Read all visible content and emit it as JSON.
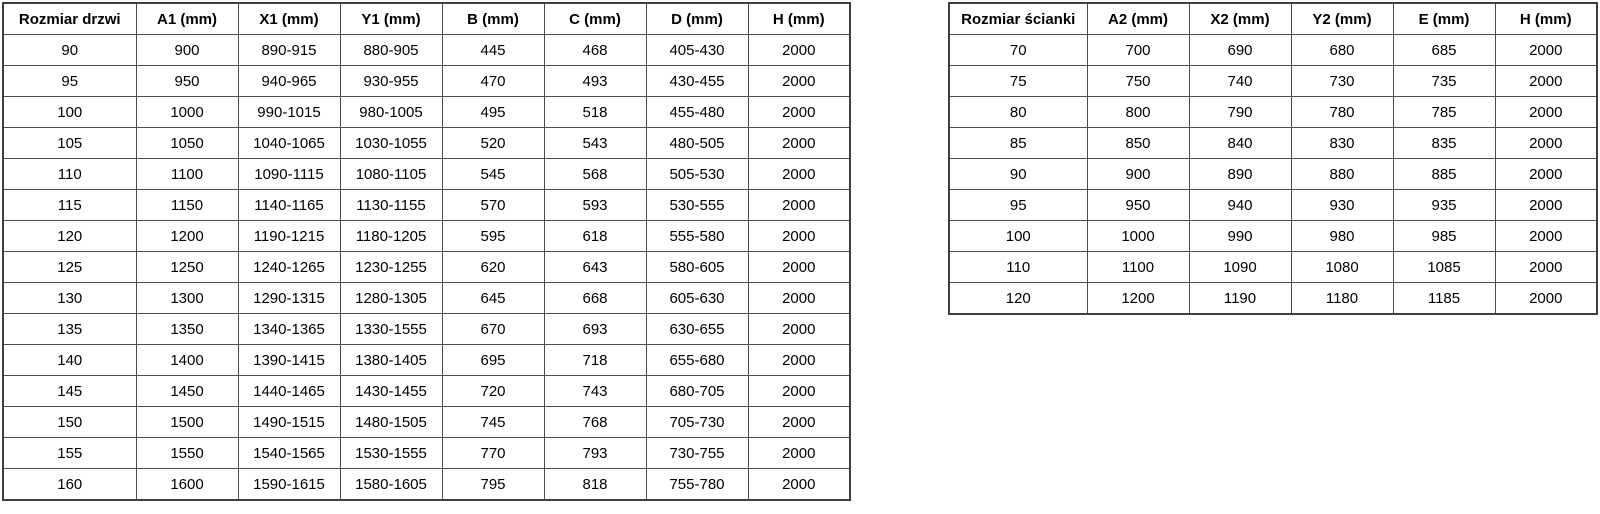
{
  "colors": {
    "background": "#ffffff",
    "border_inner": "#4d4d4d",
    "border_outer": "#3f3f3f",
    "text": "#000000"
  },
  "tables": [
    {
      "id": "door-size-table",
      "headers": [
        "Rozmiar drzwi",
        "A1 (mm)",
        "X1 (mm)",
        "Y1 (mm)",
        "B (mm)",
        "C (mm)",
        "D (mm)",
        "H (mm)"
      ],
      "rows": [
        [
          "90",
          "900",
          "890-915",
          "880-905",
          "445",
          "468",
          "405-430",
          "2000"
        ],
        [
          "95",
          "950",
          "940-965",
          "930-955",
          "470",
          "493",
          "430-455",
          "2000"
        ],
        [
          "100",
          "1000",
          "990-1015",
          "980-1005",
          "495",
          "518",
          "455-480",
          "2000"
        ],
        [
          "105",
          "1050",
          "1040-1065",
          "1030-1055",
          "520",
          "543",
          "480-505",
          "2000"
        ],
        [
          "110",
          "1100",
          "1090-1115",
          "1080-1105",
          "545",
          "568",
          "505-530",
          "2000"
        ],
        [
          "115",
          "1150",
          "1140-1165",
          "1130-1155",
          "570",
          "593",
          "530-555",
          "2000"
        ],
        [
          "120",
          "1200",
          "1190-1215",
          "1180-1205",
          "595",
          "618",
          "555-580",
          "2000"
        ],
        [
          "125",
          "1250",
          "1240-1265",
          "1230-1255",
          "620",
          "643",
          "580-605",
          "2000"
        ],
        [
          "130",
          "1300",
          "1290-1315",
          "1280-1305",
          "645",
          "668",
          "605-630",
          "2000"
        ],
        [
          "135",
          "1350",
          "1340-1365",
          "1330-1555",
          "670",
          "693",
          "630-655",
          "2000"
        ],
        [
          "140",
          "1400",
          "1390-1415",
          "1380-1405",
          "695",
          "718",
          "655-680",
          "2000"
        ],
        [
          "145",
          "1450",
          "1440-1465",
          "1430-1455",
          "720",
          "743",
          "680-705",
          "2000"
        ],
        [
          "150",
          "1500",
          "1490-1515",
          "1480-1505",
          "745",
          "768",
          "705-730",
          "2000"
        ],
        [
          "155",
          "1550",
          "1540-1565",
          "1530-1555",
          "770",
          "793",
          "730-755",
          "2000"
        ],
        [
          "160",
          "1600",
          "1590-1615",
          "1580-1605",
          "795",
          "818",
          "755-780",
          "2000"
        ]
      ]
    },
    {
      "id": "wall-size-table",
      "headers": [
        "Rozmiar ścianki",
        "A2 (mm)",
        "X2 (mm)",
        "Y2 (mm)",
        "E (mm)",
        "H (mm)"
      ],
      "rows": [
        [
          "70",
          "700",
          "690",
          "680",
          "685",
          "2000"
        ],
        [
          "75",
          "750",
          "740",
          "730",
          "735",
          "2000"
        ],
        [
          "80",
          "800",
          "790",
          "780",
          "785",
          "2000"
        ],
        [
          "85",
          "850",
          "840",
          "830",
          "835",
          "2000"
        ],
        [
          "90",
          "900",
          "890",
          "880",
          "885",
          "2000"
        ],
        [
          "95",
          "950",
          "940",
          "930",
          "935",
          "2000"
        ],
        [
          "100",
          "1000",
          "990",
          "980",
          "985",
          "2000"
        ],
        [
          "110",
          "1100",
          "1090",
          "1080",
          "1085",
          "2000"
        ],
        [
          "120",
          "1200",
          "1190",
          "1180",
          "1185",
          "2000"
        ]
      ]
    }
  ]
}
